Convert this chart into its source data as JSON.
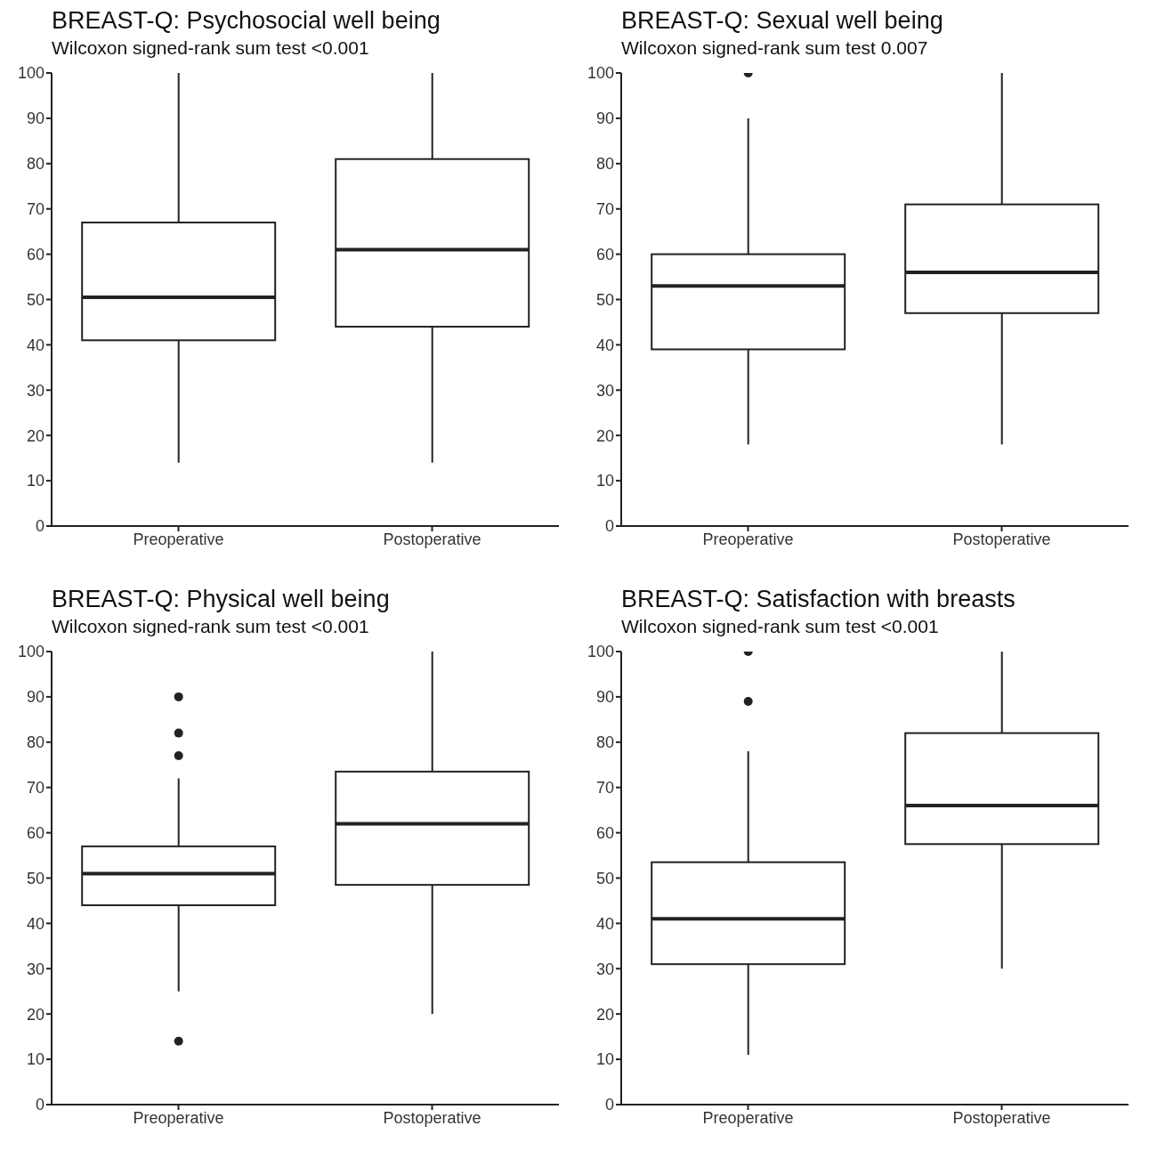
{
  "chart_data": [
    {
      "type": "box",
      "title": "BREAST-Q: Psychosocial well being",
      "subtitle": "Wilcoxon signed-rank sum test <0.001",
      "categories": [
        "Preoperative",
        "Postoperative"
      ],
      "color": "#222222",
      "ylim": [
        0,
        100
      ],
      "yticks": [
        0,
        10,
        20,
        30,
        40,
        50,
        60,
        70,
        80,
        90,
        100
      ],
      "grid": false,
      "boxes": [
        {
          "low": 14,
          "q1": 41,
          "median": 50.5,
          "q3": 67,
          "high": 100
        },
        {
          "low": 14,
          "q1": 44,
          "median": 61,
          "q3": 81,
          "high": 100
        }
      ]
    },
    {
      "type": "box",
      "title": "BREAST-Q: Sexual well being",
      "subtitle": "Wilcoxon signed-rank sum test 0.007",
      "categories": [
        "Preoperative",
        "Postoperative"
      ],
      "color": "#222222",
      "ylim": [
        0,
        100
      ],
      "yticks": [
        0,
        10,
        20,
        30,
        40,
        50,
        60,
        70,
        80,
        90,
        100
      ],
      "grid": false,
      "boxes": [
        {
          "low": 18,
          "q1": 39,
          "median": 53,
          "q3": 60,
          "high": 90,
          "outliers": [
            100
          ]
        },
        {
          "low": 18,
          "q1": 47,
          "median": 56,
          "q3": 71,
          "high": 100
        }
      ]
    },
    {
      "type": "box",
      "title": "BREAST-Q: Physical well being",
      "subtitle": "Wilcoxon signed-rank sum test <0.001",
      "categories": [
        "Preoperative",
        "Postoperative"
      ],
      "color": "#222222",
      "ylim": [
        0,
        100
      ],
      "yticks": [
        0,
        10,
        20,
        30,
        40,
        50,
        60,
        70,
        80,
        90,
        100
      ],
      "grid": false,
      "boxes": [
        {
          "low": 25,
          "q1": 44,
          "median": 51,
          "q3": 57,
          "high": 72,
          "outliers": [
            90,
            82,
            77,
            14
          ]
        },
        {
          "low": 20,
          "q1": 48.5,
          "median": 62,
          "q3": 73.5,
          "high": 100
        }
      ]
    },
    {
      "type": "box",
      "title": "BREAST-Q: Satisfaction with breasts",
      "subtitle": "Wilcoxon signed-rank sum test <0.001",
      "categories": [
        "Preoperative",
        "Postoperative"
      ],
      "color": "#222222",
      "ylim": [
        0,
        100
      ],
      "yticks": [
        0,
        10,
        20,
        30,
        40,
        50,
        60,
        70,
        80,
        90,
        100
      ],
      "grid": false,
      "boxes": [
        {
          "low": 11,
          "q1": 31,
          "median": 41,
          "q3": 53.5,
          "high": 78,
          "outliers": [
            100,
            89
          ]
        },
        {
          "low": 30,
          "q1": 57.5,
          "median": 66,
          "q3": 82,
          "high": 100
        }
      ]
    }
  ]
}
